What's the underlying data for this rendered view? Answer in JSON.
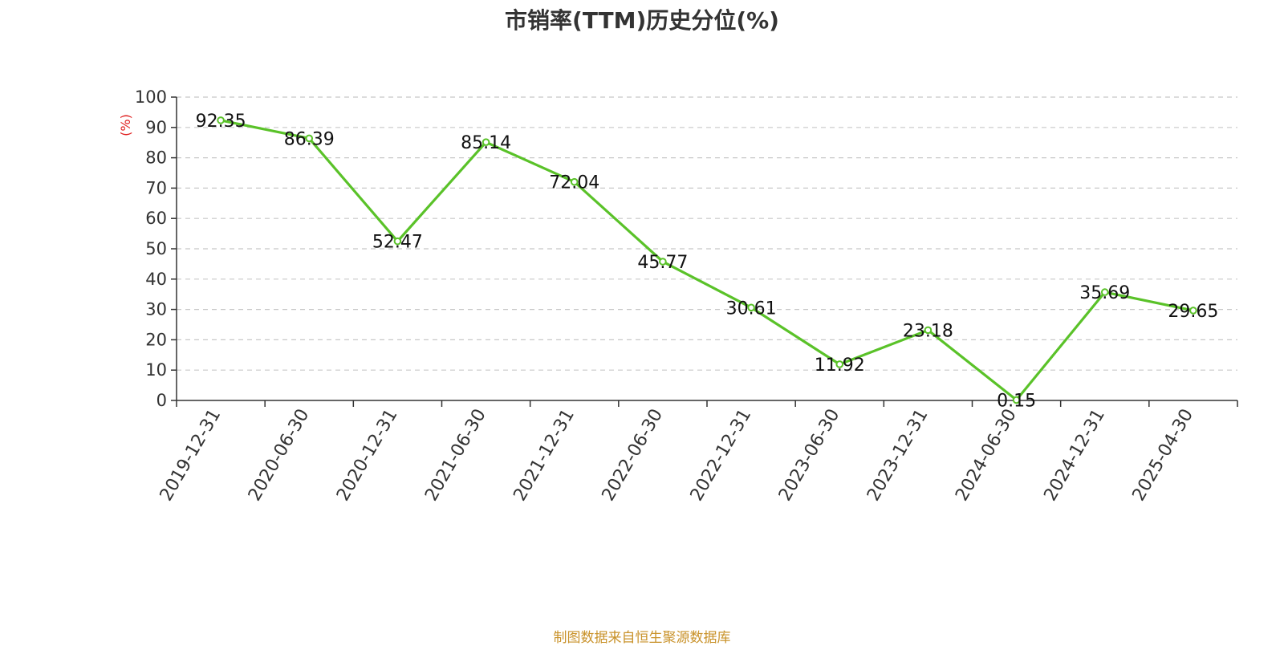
{
  "chart_data": {
    "type": "line",
    "title": "市销率(TTM)历史分位(%)",
    "ylabel": "(%)",
    "xlabel": "",
    "ylim": [
      0,
      100
    ],
    "yticks": [
      0,
      10,
      20,
      30,
      40,
      50,
      60,
      70,
      80,
      90,
      100
    ],
    "grid": "horizontal dashed",
    "categories": [
      "2019-12-31",
      "2020-06-30",
      "2020-12-31",
      "2021-06-30",
      "2021-12-31",
      "2022-06-30",
      "2022-12-31",
      "2023-06-30",
      "2023-12-31",
      "2024-06-30",
      "2024-12-31",
      "2025-04-30"
    ],
    "values": [
      92.35,
      86.39,
      52.47,
      85.14,
      72.04,
      45.77,
      30.61,
      11.92,
      23.18,
      0.15,
      35.69,
      29.65
    ],
    "data_labels": [
      "92.35",
      "86.39",
      "52.47",
      "85.14",
      "72.04",
      "45.77",
      "30.61",
      "11.92",
      "23.18",
      "0.15",
      "35.69",
      "29.65"
    ],
    "line_color": "#5ac229",
    "ylabel_color": "#e02020"
  },
  "footer": {
    "source": "制图数据来自恒生聚源数据库"
  }
}
